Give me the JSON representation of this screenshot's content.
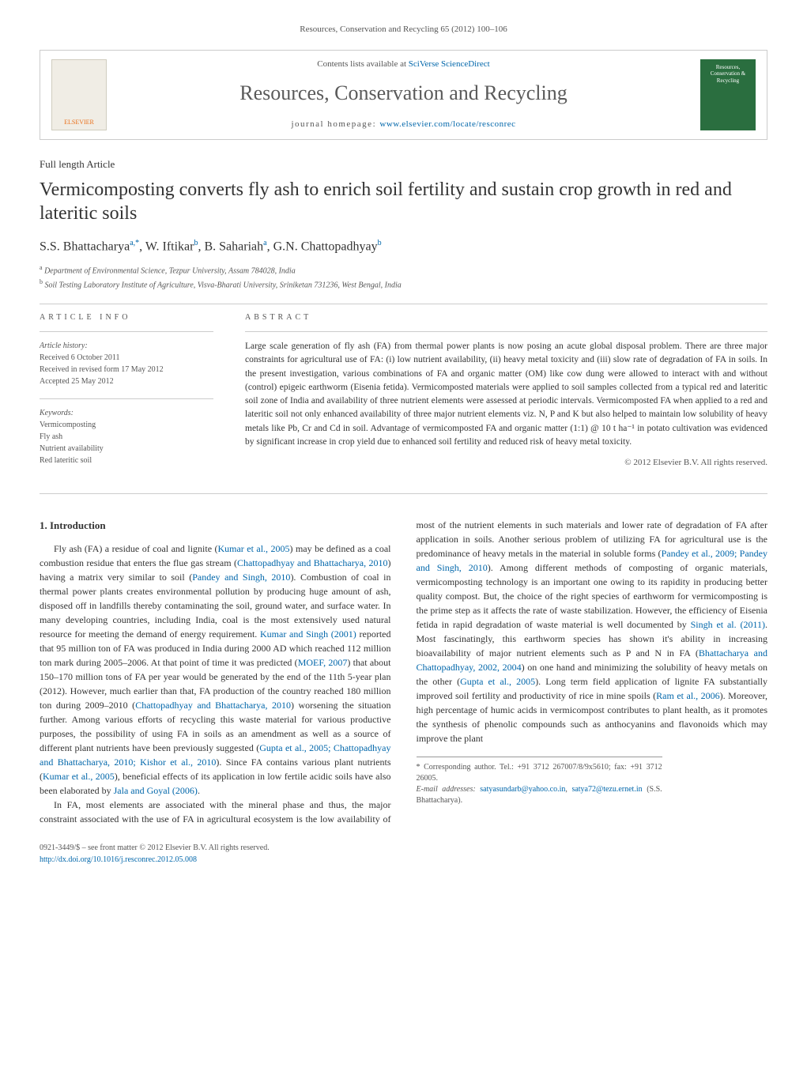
{
  "header": {
    "citation": "Resources, Conservation and Recycling 65 (2012) 100–106"
  },
  "banner": {
    "publisher_logo": "ELSEVIER",
    "lists_prefix": "Contents lists available at ",
    "lists_link": "SciVerse ScienceDirect",
    "journal_name": "Resources, Conservation and Recycling",
    "homepage_prefix": "journal homepage: ",
    "homepage_url": "www.elsevier.com/locate/resconrec",
    "cover_text": "Resources, Conservation & Recycling"
  },
  "article": {
    "type": "Full length Article",
    "title": "Vermicomposting converts fly ash to enrich soil fertility and sustain crop growth in red and lateritic soils",
    "authors_html": "S.S. Bhattacharya<sup>a,*</sup>, W. Iftikar<sup>b</sup>, B. Sahariah<sup>a</sup>, G.N. Chattopadhyay<sup>b</sup>",
    "affiliations": {
      "a": "Department of Environmental Science, Tezpur University, Assam 784028, India",
      "b": "Soil Testing Laboratory Institute of Agriculture, Visva-Bharati University, Sriniketan 731236, West Bengal, India"
    }
  },
  "info": {
    "heading": "ARTICLE INFO",
    "history_label": "Article history:",
    "received": "Received 6 October 2011",
    "revised": "Received in revised form 17 May 2012",
    "accepted": "Accepted 25 May 2012",
    "keywords_label": "Keywords:",
    "keywords": [
      "Vermicomposting",
      "Fly ash",
      "Nutrient availability",
      "Red lateritic soil"
    ]
  },
  "abstract": {
    "heading": "ABSTRACT",
    "text": "Large scale generation of fly ash (FA) from thermal power plants is now posing an acute global disposal problem. There are three major constraints for agricultural use of FA: (i) low nutrient availability, (ii) heavy metal toxicity and (iii) slow rate of degradation of FA in soils. In the present investigation, various combinations of FA and organic matter (OM) like cow dung were allowed to interact with and without (control) epigeic earthworm (Eisenia fetida). Vermicomposted materials were applied to soil samples collected from a typical red and lateritic soil zone of India and availability of three nutrient elements were assessed at periodic intervals. Vermicomposted FA when applied to a red and lateritic soil not only enhanced availability of three major nutrient elements viz. N, P and K but also helped to maintain low solubility of heavy metals like Pb, Cr and Cd in soil. Advantage of vermicomposted FA and organic matter (1:1) @ 10 t ha⁻¹ in potato cultivation was evidenced by significant increase in crop yield due to enhanced soil fertility and reduced risk of heavy metal toxicity.",
    "copyright": "© 2012 Elsevier B.V. All rights reserved."
  },
  "body": {
    "section1_heading": "1. Introduction",
    "p1_a": "Fly ash (FA) a residue of coal and lignite (",
    "p1_ref1": "Kumar et al., 2005",
    "p1_b": ") may be defined as a coal combustion residue that enters the flue gas stream (",
    "p1_ref2": "Chattopadhyay and Bhattacharya, 2010",
    "p1_c": ") having a matrix very similar to soil (",
    "p1_ref3": "Pandey and Singh, 2010",
    "p1_d": "). Combustion of coal in thermal power plants creates environmental pollution by producing huge amount of ash, disposed off in landfills thereby contaminating the soil, ground water, and surface water. In many developing countries, including India, coal is the most extensively used natural resource for meeting the demand of energy requirement. ",
    "p1_ref4": "Kumar and Singh (2001)",
    "p1_e": " reported that 95 million ton of FA was produced in India during 2000 AD which reached 112 million ton mark during 2005–2006. At that point of time it was predicted (",
    "p1_ref5": "MOEF, 2007",
    "p1_f": ") that about 150–170 million tons of FA per year would be generated by the end of the 11th 5-year plan (2012). However, much earlier than that, FA production of the country reached 180 million ton during 2009–2010 (",
    "p1_ref6": "Chattopadhyay and Bhattacharya, 2010",
    "p1_g": ") worsening the situation further. Among various efforts of recycling this waste material for various productive purposes, the possibility of using FA in soils as an amendment as well as a source of different plant nutrients have been previously suggested (",
    "p1_ref7": "Gupta et al., 2005; Chattopadhyay and Bhattacharya, 2010; Kishor et al., 2010",
    "p1_h": "). Since FA contains various plant nutrients (",
    "p1_ref8": "Kumar et al., 2005",
    "p1_i": "), beneficial effects of its application in low fertile acidic soils have also been elaborated by ",
    "p1_ref9": "Jala and Goyal (2006)",
    "p1_j": ".",
    "p2_a": "In FA, most elements are associated with the mineral phase and thus, the major constraint associated with the use of FA in agricultural ecosystem is the low availability of most of the nutrient elements in such materials and lower rate of degradation of FA after application in soils. Another serious problem of utilizing FA for agricultural use is the predominance of heavy metals in the material in soluble forms (",
    "p2_ref1": "Pandey et al., 2009; Pandey and Singh, 2010",
    "p2_b": "). Among different methods of composting of organic materials, vermicomposting technology is an important one owing to its rapidity in producing better quality compost. But, the choice of the right species of earthworm for vermicomposting is the prime step as it affects the rate of waste stabilization. However, the efficiency of Eisenia fetida in rapid degradation of waste material is well documented by ",
    "p2_ref2": "Singh et al. (2011)",
    "p2_c": ". Most fascinatingly, this earthworm species has shown it's ability in increasing bioavailability of major nutrient elements such as P and N in FA (",
    "p2_ref3": "Bhattacharya and Chattopadhyay, 2002, 2004",
    "p2_d": ") on one hand and minimizing the solubility of heavy metals on the other (",
    "p2_ref4": "Gupta et al., 2005",
    "p2_e": "). Long term field application of lignite FA substantially improved soil fertility and productivity of rice in mine spoils (",
    "p2_ref5": "Ram et al., 2006",
    "p2_f": "). Moreover, high percentage of humic acids in vermicompost contributes to plant health, as it promotes the synthesis of phenolic compounds such as anthocyanins and flavonoids which may improve the plant"
  },
  "footnote": {
    "corr": "* Corresponding author. Tel.: +91 3712 267007/8/9x5610; fax: +91 3712 26005.",
    "email_label": "E-mail addresses: ",
    "email1": "satyasundarb@yahoo.co.in",
    "email2": "satya72@tezu.ernet.in",
    "email_suffix": " (S.S. Bhattacharya)."
  },
  "footer": {
    "issn": "0921-3449/$ – see front matter © 2012 Elsevier B.V. All rights reserved.",
    "doi_url": "http://dx.doi.org/10.1016/j.resconrec.2012.05.008"
  },
  "colors": {
    "link": "#0066aa",
    "text": "#333333",
    "muted": "#555555",
    "rule": "#cccccc",
    "cover_bg": "#2a6e3f",
    "elsevier_orange": "#e9711c"
  }
}
